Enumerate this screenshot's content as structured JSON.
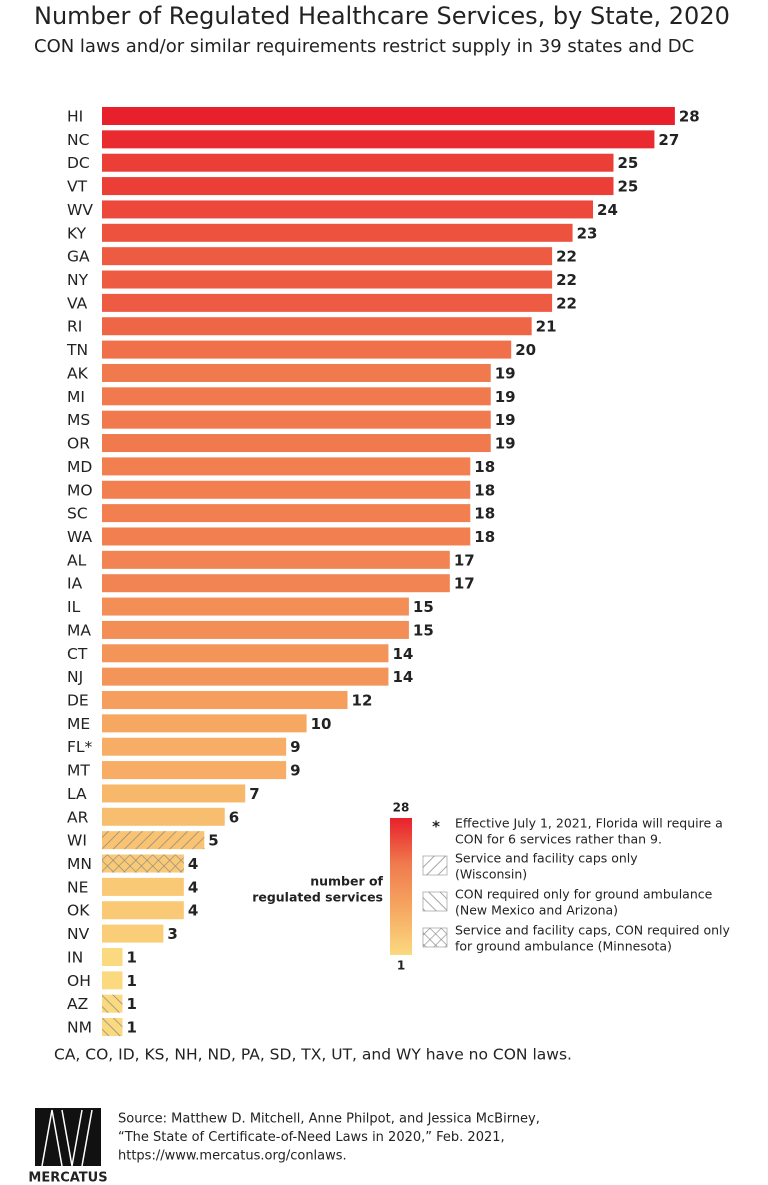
{
  "chart_data": {
    "type": "hbar",
    "title": "Number of Regulated Healthcare Services, by State, 2020",
    "subtitle": "CON laws and/or similar requirements restrict supply in 39 states and DC",
    "categories": [
      "HI",
      "NC",
      "DC",
      "VT",
      "WV",
      "KY",
      "GA",
      "NY",
      "VA",
      "RI",
      "TN",
      "AK",
      "MI",
      "MS",
      "OR",
      "MD",
      "MO",
      "SC",
      "WA",
      "AL",
      "IA",
      "IL",
      "MA",
      "CT",
      "NJ",
      "DE",
      "ME",
      "FL*",
      "MT",
      "LA",
      "AR",
      "WI",
      "MN",
      "NE",
      "OK",
      "NV",
      "IN",
      "OH",
      "AZ",
      "NM"
    ],
    "values": [
      28,
      27,
      25,
      25,
      24,
      23,
      22,
      22,
      22,
      21,
      20,
      19,
      19,
      19,
      19,
      18,
      18,
      18,
      18,
      17,
      17,
      15,
      15,
      14,
      14,
      12,
      10,
      9,
      9,
      7,
      6,
      5,
      4,
      4,
      4,
      3,
      1,
      1,
      1,
      1
    ],
    "patterns": [
      null,
      null,
      null,
      null,
      null,
      null,
      null,
      null,
      null,
      null,
      null,
      null,
      null,
      null,
      null,
      null,
      null,
      null,
      null,
      null,
      null,
      null,
      null,
      null,
      null,
      null,
      null,
      null,
      null,
      null,
      null,
      "back-hatch",
      "cross-hatch",
      null,
      null,
      null,
      null,
      null,
      "fwd-hatch",
      "fwd-hatch"
    ],
    "color_scale": {
      "title_lines": [
        "number of",
        "regulated services"
      ],
      "min": 1,
      "max": 28,
      "colors": [
        "#fbd97f",
        "#f6a862",
        "#f07a4d",
        "#e8202c"
      ]
    },
    "legend": [
      {
        "symbol": "*",
        "lines": [
          "Effective July 1, 2021, Florida will require a",
          "CON for 6 services rather than 9."
        ]
      },
      {
        "pattern": "back-hatch",
        "lines": [
          "Service and facility caps only",
          "(Wisconsin)"
        ]
      },
      {
        "pattern": "fwd-hatch",
        "lines": [
          "CON required only for ground ambulance",
          "(New Mexico and Arizona)"
        ]
      },
      {
        "pattern": "cross-hatch",
        "lines": [
          "Service and facility caps, CON required only",
          "for ground ambulance (Minnesota)"
        ]
      }
    ],
    "note": "CA, CO, ID, KS, NH, ND, PA, SD, TX, UT, and WY have no CON laws.",
    "source_lines": [
      "Source: Matthew D. Mitchell, Anne Philpot, and Jessica McBirney,",
      "“The State of Certificate-of-Need Laws in 2020,” Feb. 2021,",
      "https://www.mercatus.org/conlaws."
    ],
    "logo_text": "MERCATUS"
  }
}
